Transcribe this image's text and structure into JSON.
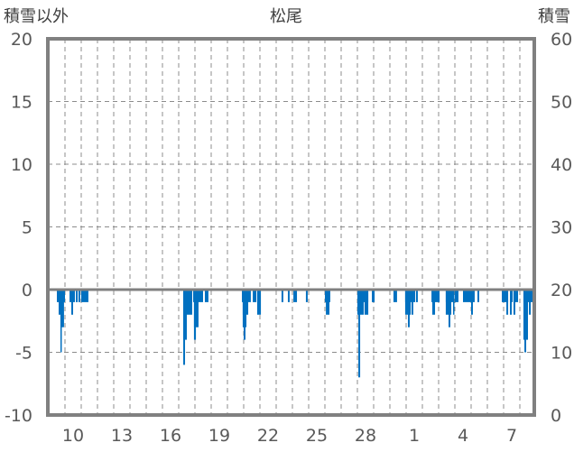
{
  "chart_data": {
    "type": "bar",
    "title": "松尾",
    "y_left_label": "積雪以外",
    "y_right_label": "積雪",
    "ylim_left": [
      -10,
      20
    ],
    "ylim_right": [
      0,
      60
    ],
    "yticks_left": [
      "20",
      "15",
      "10",
      "5",
      "0",
      "-5",
      "-10"
    ],
    "yticks_right": [
      "60",
      "50",
      "40",
      "30",
      "20",
      "10",
      "0"
    ],
    "xtick_labels": [
      {
        "t": 0.5,
        "label": "10"
      },
      {
        "t": 3.5,
        "label": "13"
      },
      {
        "t": 6.5,
        "label": "16"
      },
      {
        "t": 9.5,
        "label": "19"
      },
      {
        "t": 12.5,
        "label": "22"
      },
      {
        "t": 15.5,
        "label": "25"
      },
      {
        "t": 18.5,
        "label": "28"
      },
      {
        "t": 21.5,
        "label": "1"
      },
      {
        "t": 24.5,
        "label": "4"
      },
      {
        "t": 27.5,
        "label": "7"
      }
    ],
    "x_unit": "days from start of day 10",
    "xlim": [
      -1.05,
      28.9
    ],
    "grid": true,
    "color": "#0070c0",
    "bars": [
      [
        -0.5,
        0,
        -1
      ],
      [
        -0.39,
        -0.11,
        -2
      ],
      [
        -0.28,
        -0.06,
        -3
      ],
      [
        -0.28,
        -0.22,
        -4
      ],
      [
        -0.28,
        -0.22,
        -5
      ],
      [
        0.28,
        0.61,
        -1
      ],
      [
        0.39,
        0.5,
        -2
      ],
      [
        0.67,
        0.78,
        -1
      ],
      [
        0.83,
        0.94,
        -1
      ],
      [
        1.0,
        1.44,
        -1
      ],
      [
        7.28,
        7.83,
        -1
      ],
      [
        7.28,
        7.5,
        -4
      ],
      [
        7.28,
        7.39,
        -6
      ],
      [
        7.5,
        7.83,
        -2
      ],
      [
        7.89,
        8.5,
        -1
      ],
      [
        7.94,
        8.22,
        -3
      ],
      [
        7.94,
        8.06,
        -4
      ],
      [
        8.61,
        8.83,
        -1
      ],
      [
        10.89,
        11.44,
        -1
      ],
      [
        10.94,
        11.28,
        -2
      ],
      [
        10.94,
        11.17,
        -3
      ],
      [
        11.0,
        11.11,
        -4
      ],
      [
        11.56,
        11.78,
        -1
      ],
      [
        11.83,
        12.06,
        -2
      ],
      [
        13.33,
        13.44,
        -1
      ],
      [
        13.72,
        13.83,
        -1
      ],
      [
        14.06,
        14.28,
        -1
      ],
      [
        14.83,
        14.94,
        -1
      ],
      [
        16.0,
        16.33,
        -1
      ],
      [
        16.06,
        16.28,
        -2
      ],
      [
        18.0,
        18.67,
        -1
      ],
      [
        18.0,
        18.39,
        -2
      ],
      [
        18.44,
        18.67,
        -2
      ],
      [
        18.06,
        18.17,
        -7
      ],
      [
        18.89,
        19.06,
        -1
      ],
      [
        20.22,
        20.44,
        -1
      ],
      [
        20.94,
        21.56,
        -1
      ],
      [
        20.94,
        21.28,
        -2
      ],
      [
        21.11,
        21.22,
        -3
      ],
      [
        21.33,
        21.44,
        -2
      ],
      [
        21.61,
        21.72,
        -1
      ],
      [
        22.56,
        23.06,
        -1
      ],
      [
        22.61,
        22.78,
        -2
      ],
      [
        23.44,
        23.94,
        -1
      ],
      [
        23.44,
        23.78,
        -2
      ],
      [
        23.61,
        23.72,
        -3
      ],
      [
        23.89,
        23.94,
        -2
      ],
      [
        24.0,
        24.22,
        -1
      ],
      [
        24.5,
        25.22,
        -1
      ],
      [
        25.0,
        25.11,
        -2
      ],
      [
        25.39,
        25.5,
        -1
      ],
      [
        26.89,
        27.28,
        -1
      ],
      [
        27.17,
        27.28,
        -2
      ],
      [
        27.39,
        27.56,
        -1
      ],
      [
        27.39,
        27.5,
        -2
      ],
      [
        27.61,
        27.89,
        -1
      ],
      [
        27.61,
        27.72,
        -2
      ],
      [
        28.22,
        28.83,
        -1
      ],
      [
        28.22,
        28.5,
        -4
      ],
      [
        28.28,
        28.39,
        -5
      ],
      [
        28.56,
        28.67,
        -2
      ]
    ]
  }
}
